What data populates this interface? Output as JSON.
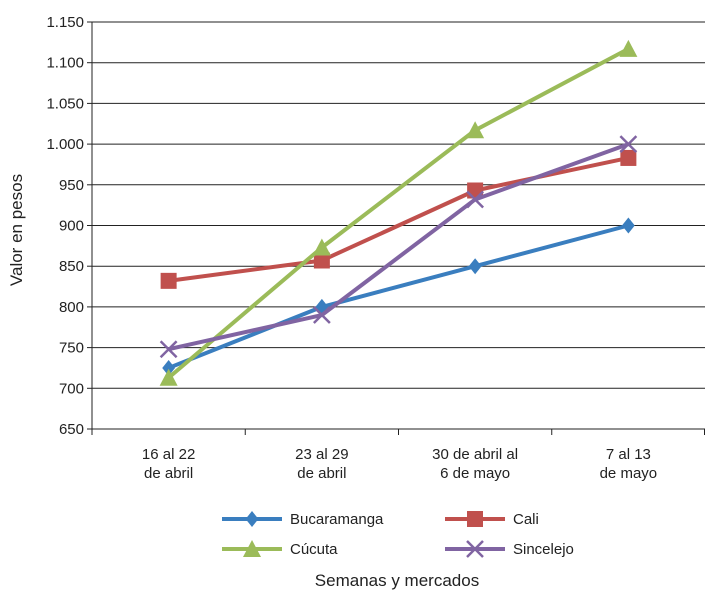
{
  "chart_data": {
    "type": "line",
    "title": "",
    "xlabel": "Semanas y mercados",
    "ylabel": "Valor en pesos",
    "categories": [
      [
        "16 al 22",
        "de abril"
      ],
      [
        "23 al 29",
        "de abril"
      ],
      [
        "30 de abril al",
        "6 de mayo"
      ],
      [
        "7 al 13",
        "de mayo"
      ]
    ],
    "ylim": [
      650,
      1150
    ],
    "yticks": [
      {
        "value": 650,
        "label": "650"
      },
      {
        "value": 700,
        "label": "700"
      },
      {
        "value": 750,
        "label": "750"
      },
      {
        "value": 800,
        "label": "800"
      },
      {
        "value": 850,
        "label": "850"
      },
      {
        "value": 900,
        "label": "900"
      },
      {
        "value": 950,
        "label": "950"
      },
      {
        "value": 1000,
        "label": "1.000"
      },
      {
        "value": 1050,
        "label": "1.050"
      },
      {
        "value": 1100,
        "label": "1.100"
      },
      {
        "value": 1150,
        "label": "1.150"
      }
    ],
    "grid": true,
    "legend_position": "bottom",
    "series": [
      {
        "name": "Bucaramanga",
        "color": "#3a7ebf",
        "marker": "diamond",
        "values": [
          725,
          800,
          850,
          900
        ]
      },
      {
        "name": "Cali",
        "color": "#c0504d",
        "marker": "square",
        "values": [
          832,
          857,
          943,
          983
        ]
      },
      {
        "name": "Cúcuta",
        "color": "#9bbb59",
        "marker": "triangle",
        "values": [
          713,
          873,
          1017,
          1117
        ]
      },
      {
        "name": "Sincelejo",
        "color": "#8064a2",
        "marker": "x",
        "values": [
          748,
          790,
          932,
          1000
        ]
      }
    ]
  }
}
